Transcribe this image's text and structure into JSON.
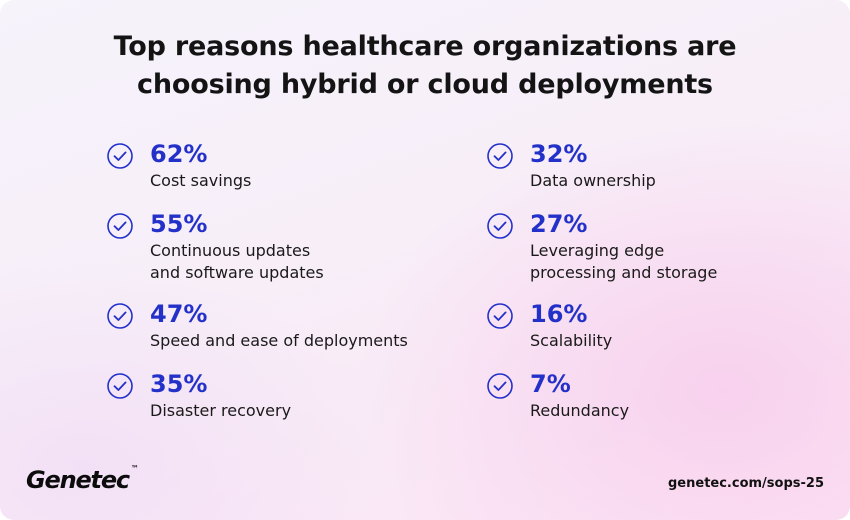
{
  "title": {
    "line1": "Top reasons healthcare organizations are",
    "line2": "choosing hybrid or cloud deployments"
  },
  "left_column": [
    {
      "percent": "62%",
      "label_lines": [
        "Cost savings"
      ]
    },
    {
      "percent": "55%",
      "label_lines": [
        "Continuous updates",
        "and software updates"
      ]
    },
    {
      "percent": "47%",
      "label_lines": [
        "Speed and ease of deployments"
      ]
    },
    {
      "percent": "35%",
      "label_lines": [
        "Disaster recovery"
      ]
    }
  ],
  "right_column": [
    {
      "percent": "32%",
      "label_lines": [
        "Data ownership"
      ]
    },
    {
      "percent": "27%",
      "label_lines": [
        "Leveraging edge",
        "processing and storage"
      ]
    },
    {
      "percent": "16%",
      "label_lines": [
        "Scalability"
      ]
    },
    {
      "percent": "7%",
      "label_lines": [
        "Redundancy"
      ]
    }
  ],
  "footer": {
    "logo_text": "Genetec",
    "logo_mark": "™",
    "url": "genetec.com/sops-25"
  },
  "icons": {
    "check": "check-circle-icon"
  },
  "colors": {
    "accent": "#2431c9",
    "text": "#1a1a1a"
  }
}
